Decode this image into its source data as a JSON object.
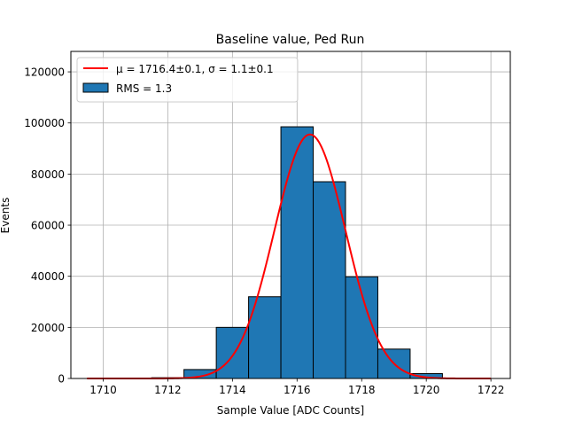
{
  "chart_data": {
    "type": "bar",
    "title": "Baseline value, Ped Run",
    "xlabel": "Sample Value [ADC Counts]",
    "ylabel": "Events",
    "xlim": [
      1709.0,
      1722.6
    ],
    "ylim": [
      0,
      128000
    ],
    "grid": true,
    "legend_position": "top-left",
    "x_ticks": [
      1710,
      1712,
      1714,
      1716,
      1718,
      1720,
      1722
    ],
    "y_ticks": [
      0,
      20000,
      40000,
      60000,
      80000,
      100000,
      120000
    ],
    "histogram": {
      "name": "RMS = 1.3",
      "bin_edges": [
        1709.5,
        1710.5,
        1711.5,
        1712.5,
        1713.5,
        1714.5,
        1715.5,
        1716.5,
        1717.5,
        1718.5,
        1719.5,
        1720.5
      ],
      "counts": [
        0,
        0,
        300,
        3500,
        20000,
        32000,
        98500,
        77000,
        39800,
        11500,
        1900
      ],
      "color": "#1f77b4"
    },
    "fit": {
      "name": "μ = 1716.4±0.1, σ = 1.1±0.1",
      "mu": 1716.4,
      "sigma": 1.1,
      "amplitude": 95500,
      "x_range": [
        1709.5,
        1722.0
      ],
      "color": "#ff0000"
    }
  }
}
